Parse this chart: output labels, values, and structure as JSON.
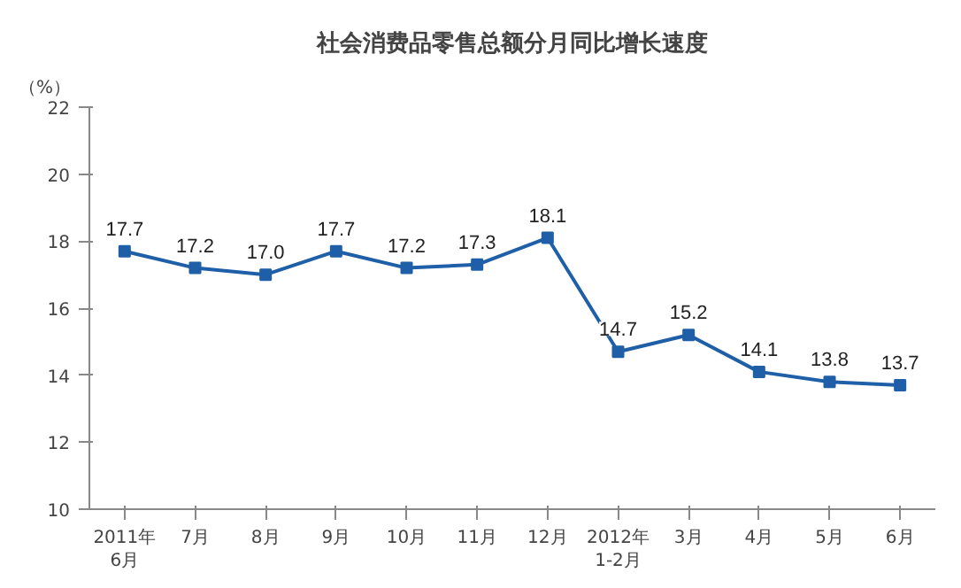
{
  "chart_data": {
    "type": "line",
    "title": "社会消费品零售总额分月同比增长速度",
    "ylabel": "（%）",
    "categories": [
      "2011年\n6月",
      "7月",
      "8月",
      "9月",
      "10月",
      "11月",
      "12月",
      "2012年\n1-2月",
      "3月",
      "4月",
      "5月",
      "6月"
    ],
    "series": [
      {
        "color": "#1f5fa8",
        "values": [
          17.7,
          17.2,
          17.0,
          17.7,
          17.2,
          17.3,
          18.1,
          14.7,
          15.2,
          14.1,
          13.8,
          13.7
        ]
      }
    ],
    "value_labels": [
      "17.7",
      "17.2",
      "17.0",
      "17.7",
      "17.2",
      "17.3",
      "18.1",
      "14.7",
      "15.2",
      "14.1",
      "13.8",
      "13.7"
    ],
    "ylim": [
      10,
      22
    ],
    "yticks": [
      10,
      12,
      14,
      16,
      18,
      20,
      22
    ],
    "grid": false,
    "marker": "square",
    "line_style": "solid"
  }
}
